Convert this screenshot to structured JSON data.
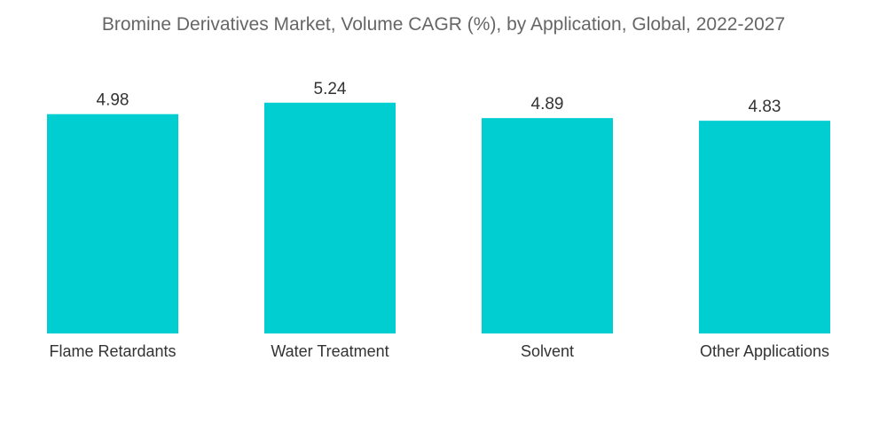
{
  "chart_data": {
    "type": "bar",
    "title": "Bromine Derivatives Market, Volume CAGR (%), by Application, Global, 2022-2027",
    "categories": [
      "Flame Retardants",
      "Water Treatment",
      "Solvent",
      "Other Applications"
    ],
    "values": [
      4.98,
      5.24,
      4.89,
      4.83
    ],
    "value_labels": [
      "4.98",
      "5.24",
      "4.89",
      "4.83"
    ],
    "xlabel": "",
    "ylabel": "",
    "ylim": [
      0,
      5.9
    ],
    "grid": false,
    "legend": "none",
    "bar_color": "#00CED1"
  }
}
